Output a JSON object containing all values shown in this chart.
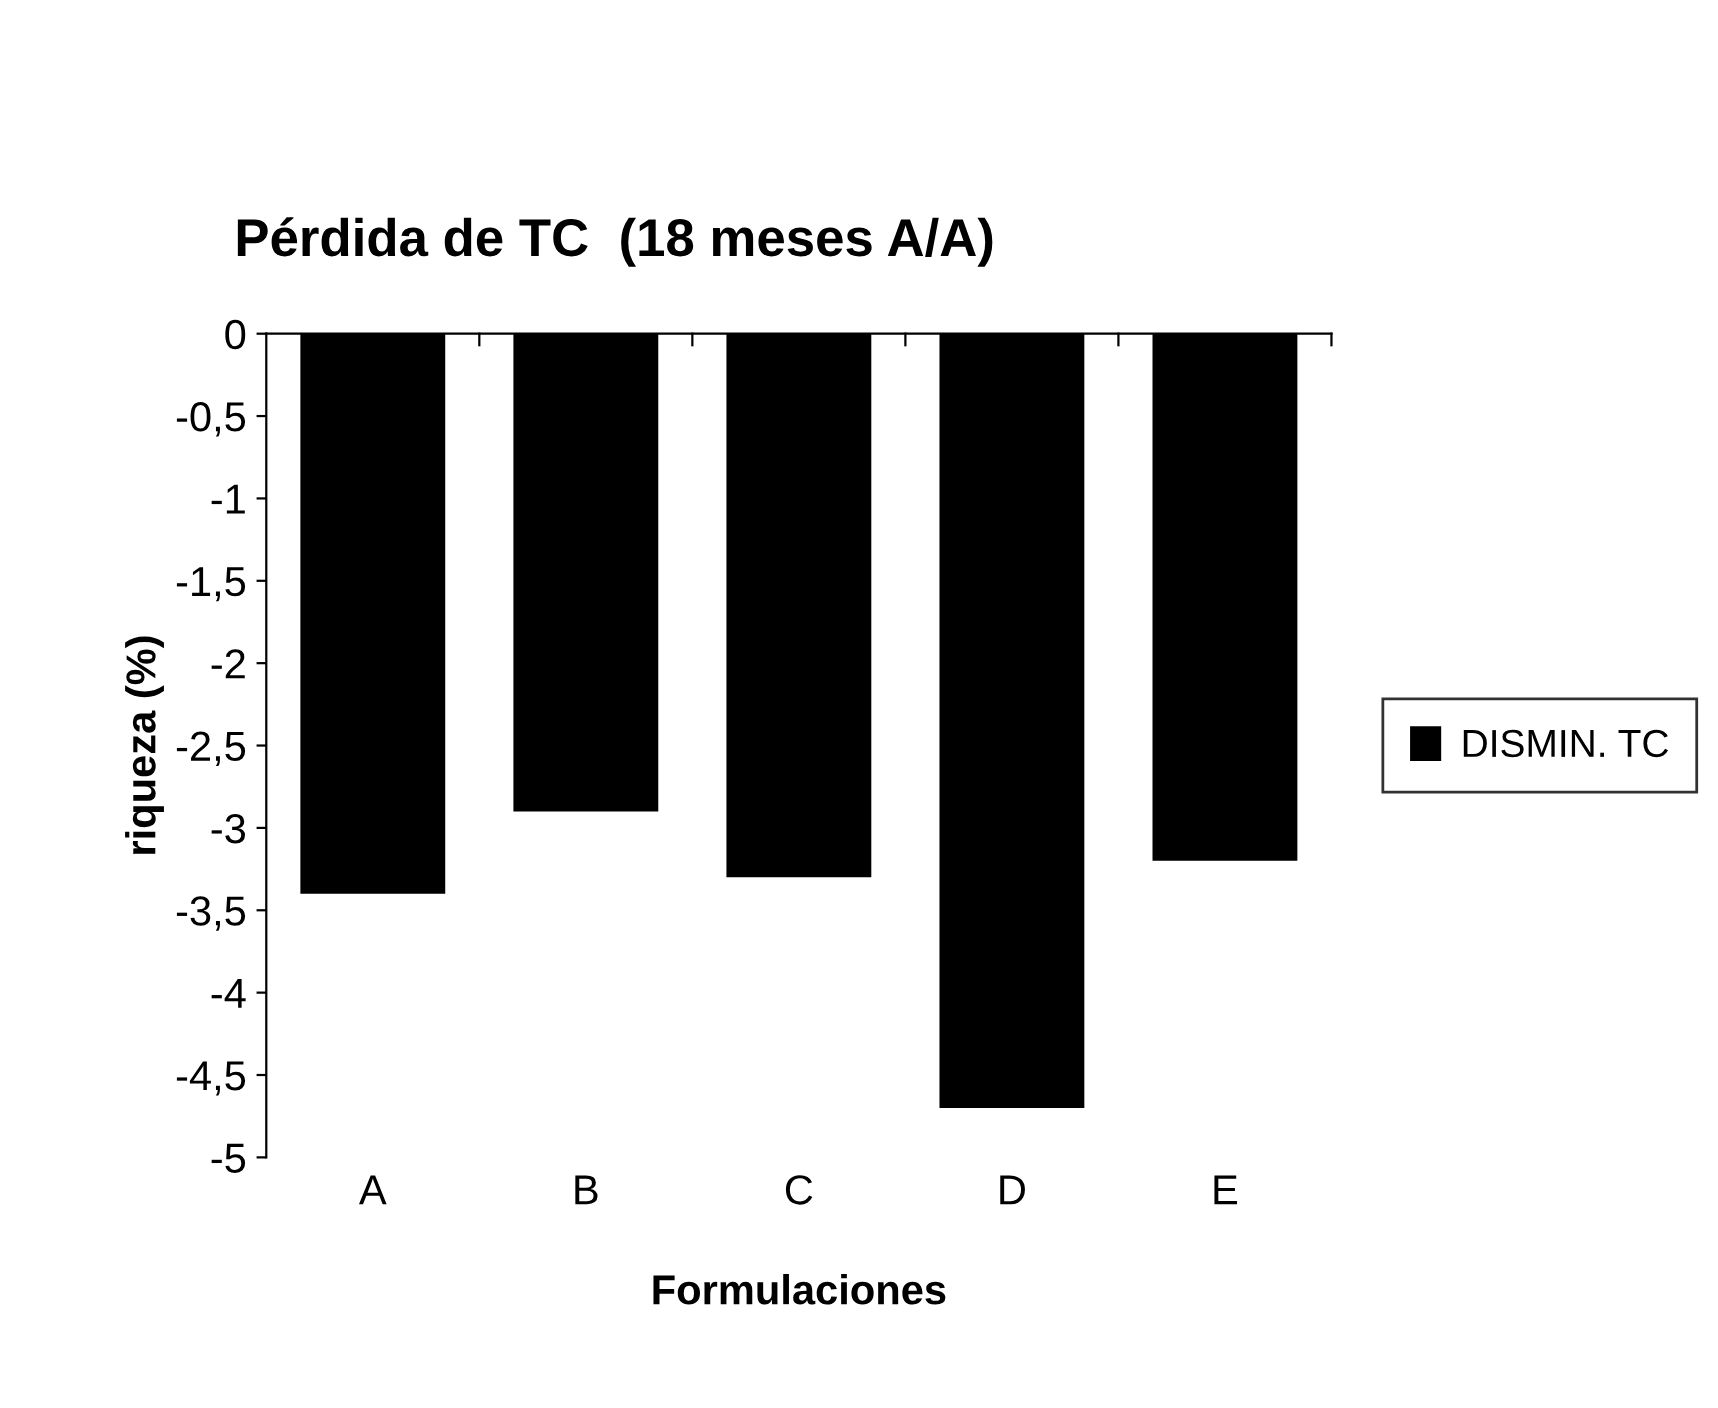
{
  "chart_data": {
    "type": "bar",
    "title": "Pérdida de TC  (18 meses A/A)",
    "xlabel": "Formulaciones",
    "ylabel": "riqueza (%)",
    "categories": [
      "A",
      "B",
      "C",
      "D",
      "E"
    ],
    "series": [
      {
        "name": "DISMIN. TC",
        "color": "#000000",
        "values": [
          -3.4,
          -2.9,
          -3.3,
          -4.7,
          -3.2
        ]
      }
    ],
    "ylim": [
      -5,
      0
    ],
    "yticks": [
      {
        "value": -5,
        "label": "-5"
      },
      {
        "value": -4.5,
        "label": "-4,5"
      },
      {
        "value": -4,
        "label": "-4"
      },
      {
        "value": -3.5,
        "label": "-3,5"
      },
      {
        "value": -3,
        "label": "-3"
      },
      {
        "value": -2.5,
        "label": "-2,5"
      },
      {
        "value": -2,
        "label": "-2"
      },
      {
        "value": -1.5,
        "label": "-1,5"
      },
      {
        "value": -1,
        "label": "-1"
      },
      {
        "value": -0.5,
        "label": "-0,5"
      },
      {
        "value": 0,
        "label": "0"
      }
    ],
    "grid": false,
    "legend": "right"
  }
}
